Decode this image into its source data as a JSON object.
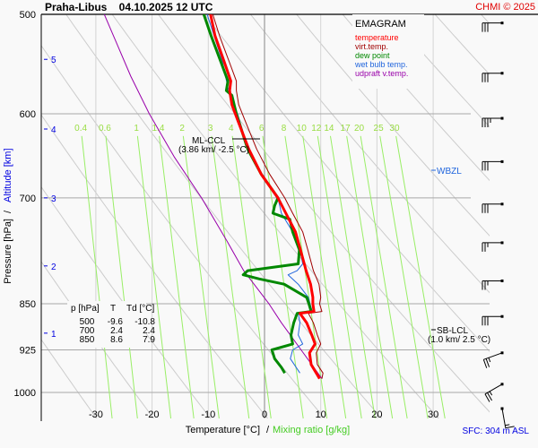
{
  "header": {
    "title": "Praha-Libus    04.10.2025 12 UTC",
    "copyright": "CHMI © 2025"
  },
  "chart_data": {
    "type": "line",
    "diagram_type": "EMAGRAM",
    "title": "Praha-Libus 04.10.2025 12 UTC",
    "xlabel": "Temperature [°C]",
    "xlabel_sep": "/",
    "xlabel2": "Mixing ratio [g/kg]",
    "ylabel": "Pressure [hPa]",
    "ylabel_sep": "/",
    "ylabel2": "Altitude [km]",
    "xlim": [
      -40,
      40
    ],
    "ylim": [
      1050,
      500
    ],
    "x_ticks": [
      -30,
      -20,
      -10,
      0,
      10,
      20,
      30
    ],
    "y_ticks": [
      500,
      600,
      700,
      850,
      925,
      1000
    ],
    "altitude_ticks_km": [
      {
        "km": 5,
        "p": 543
      },
      {
        "km": 4,
        "p": 617
      },
      {
        "km": 3,
        "p": 700
      },
      {
        "km": 2,
        "p": 793
      },
      {
        "km": 1,
        "p": 897
      }
    ],
    "mixing_ratio_labels": [
      "0.4",
      "0.6",
      "1",
      "1.4",
      "2",
      "3",
      "4",
      "6",
      "8",
      "10",
      "12",
      "14",
      "17",
      "20",
      "25",
      "30"
    ],
    "legend": {
      "heading": "EMAGRAM",
      "placement": "top-right",
      "items": [
        {
          "name": "temperature",
          "color": "#ff0000"
        },
        {
          "name": "virt.temp.",
          "color": "#a00000"
        },
        {
          "name": "dew point",
          "color": "#008800"
        },
        {
          "name": "wet bulb temp.",
          "color": "#2266dd"
        },
        {
          "name": "udpraft v.temp.",
          "color": "#9900aa"
        }
      ]
    },
    "series": [
      {
        "name": "temperature",
        "color": "#ff0000",
        "points": [
          [
            500,
            -9.6
          ],
          [
            520,
            -8.8
          ],
          [
            545,
            -7.2
          ],
          [
            565,
            -6.0
          ],
          [
            575,
            -6.2
          ],
          [
            590,
            -5.8
          ],
          [
            610,
            -4.6
          ],
          [
            640,
            -2.8
          ],
          [
            670,
            -0.6
          ],
          [
            700,
            2.4
          ],
          [
            720,
            3.8
          ],
          [
            745,
            5.5
          ],
          [
            770,
            6.4
          ],
          [
            800,
            7.4
          ],
          [
            820,
            8.2
          ],
          [
            840,
            8.6
          ],
          [
            850,
            8.6
          ],
          [
            862,
            8.8
          ],
          [
            865,
            6.3
          ],
          [
            880,
            7.5
          ],
          [
            900,
            8.4
          ],
          [
            915,
            9.0
          ],
          [
            930,
            8.0
          ],
          [
            950,
            8.3
          ],
          [
            965,
            9.2
          ],
          [
            975,
            9.8
          ]
        ]
      },
      {
        "name": "virt.temp.",
        "color": "#a00000",
        "points": [
          [
            500,
            -9.2
          ],
          [
            520,
            -8.0
          ],
          [
            545,
            -6.3
          ],
          [
            565,
            -5.0
          ],
          [
            575,
            -5.0
          ],
          [
            590,
            -4.6
          ],
          [
            610,
            -3.3
          ],
          [
            640,
            -1.4
          ],
          [
            670,
            0.9
          ],
          [
            700,
            3.6
          ],
          [
            720,
            5.0
          ],
          [
            745,
            6.8
          ],
          [
            770,
            7.7
          ],
          [
            800,
            8.7
          ],
          [
            820,
            9.7
          ],
          [
            840,
            10.0
          ],
          [
            850,
            9.8
          ],
          [
            862,
            10.2
          ],
          [
            865,
            7.8
          ],
          [
            880,
            8.7
          ],
          [
            900,
            9.4
          ],
          [
            915,
            10.0
          ],
          [
            930,
            9.2
          ],
          [
            950,
            9.4
          ],
          [
            965,
            10.4
          ],
          [
            975,
            10.2
          ]
        ]
      },
      {
        "name": "dew point",
        "color": "#008800",
        "points": [
          [
            500,
            -10.8
          ],
          [
            520,
            -9.5
          ],
          [
            545,
            -7.8
          ],
          [
            565,
            -6.5
          ],
          [
            575,
            -6.8
          ],
          [
            580,
            -5.8
          ],
          [
            600,
            -5.0
          ],
          [
            640,
            -3.0
          ],
          [
            670,
            -0.6
          ],
          [
            700,
            2.4
          ],
          [
            710,
            1.8
          ],
          [
            720,
            1.5
          ],
          [
            728,
            4.5
          ],
          [
            745,
            5.0
          ],
          [
            770,
            6.2
          ],
          [
            790,
            6.0
          ],
          [
            800,
            -3.0
          ],
          [
            806,
            -3.8
          ],
          [
            812,
            -1.0
          ],
          [
            820,
            3.5
          ],
          [
            830,
            5.5
          ],
          [
            840,
            7.5
          ],
          [
            850,
            7.9
          ],
          [
            862,
            8.3
          ],
          [
            865,
            5.8
          ],
          [
            880,
            5.2
          ],
          [
            900,
            4.7
          ],
          [
            915,
            5.0
          ],
          [
            925,
            1.3
          ],
          [
            940,
            1.8
          ],
          [
            955,
            3.0
          ],
          [
            965,
            3.6
          ]
        ]
      },
      {
        "name": "wet bulb temp.",
        "color": "#2266dd",
        "points": [
          [
            500,
            -10.2
          ],
          [
            545,
            -7.5
          ],
          [
            575,
            -6.4
          ],
          [
            600,
            -4.8
          ],
          [
            640,
            -2.9
          ],
          [
            670,
            -0.6
          ],
          [
            700,
            2.4
          ],
          [
            720,
            3.0
          ],
          [
            745,
            5.0
          ],
          [
            770,
            6.3
          ],
          [
            790,
            6.8
          ],
          [
            800,
            5.8
          ],
          [
            806,
            4.2
          ],
          [
            820,
            6.0
          ],
          [
            840,
            7.8
          ],
          [
            850,
            8.1
          ],
          [
            862,
            8.5
          ],
          [
            865,
            6.0
          ],
          [
            880,
            6.3
          ],
          [
            900,
            6.0
          ],
          [
            915,
            6.8
          ],
          [
            925,
            5.0
          ],
          [
            940,
            4.6
          ],
          [
            965,
            6.3
          ]
        ]
      },
      {
        "name": "udpraft v.temp.",
        "color": "#9900aa",
        "points": [
          [
            500,
            -28.5
          ],
          [
            560,
            -23.8
          ],
          [
            600,
            -20.5
          ],
          [
            650,
            -16.0
          ],
          [
            700,
            -11.2
          ],
          [
            760,
            -6.5
          ],
          [
            800,
            -3.7
          ],
          [
            850,
            0.8
          ],
          [
            880,
            3.0
          ],
          [
            925,
            6.5
          ],
          [
            975,
            10.2
          ]
        ]
      }
    ],
    "annotations": [
      {
        "label": "ML-CCL",
        "detail": "(3.86 km/ -2.5 °C)",
        "p": 620,
        "t": -2.5
      },
      {
        "label": "WBZL",
        "p": 665,
        "color": "#2266dd"
      },
      {
        "label": "SB-LCL",
        "detail": "(1.0 km/ 2.5 °C)",
        "p": 893
      }
    ],
    "table": {
      "headers": [
        "p [hPa]",
        "T",
        "Td [°C]"
      ],
      "rows": [
        [
          "500",
          "-9.6",
          "-10.8"
        ],
        [
          "700",
          "2.4",
          "2.4"
        ],
        [
          "850",
          "8.6",
          "7.9"
        ]
      ]
    },
    "wind_barbs": [
      {
        "p": 508,
        "dir": 270,
        "kt": 30
      },
      {
        "p": 557,
        "dir": 270,
        "kt": 30
      },
      {
        "p": 605,
        "dir": 270,
        "kt": 35
      },
      {
        "p": 655,
        "dir": 270,
        "kt": 30
      },
      {
        "p": 708,
        "dir": 270,
        "kt": 30
      },
      {
        "p": 760,
        "dir": 270,
        "kt": 25
      },
      {
        "p": 815,
        "dir": 270,
        "kt": 25
      },
      {
        "p": 870,
        "dir": 270,
        "kt": 30
      },
      {
        "p": 930,
        "dir": 250,
        "kt": 25
      },
      {
        "p": 985,
        "dir": 240,
        "kt": 25
      },
      {
        "p": 1030,
        "dir": 170,
        "kt": 15
      }
    ],
    "surface": "SFC: 304 m ASL",
    "grid": true
  },
  "colors": {
    "grid": "#a8a8a8",
    "dry_adiabat": "#cccccc",
    "mixing_ratio": "#99ee66",
    "altitude": "#0000e0"
  }
}
